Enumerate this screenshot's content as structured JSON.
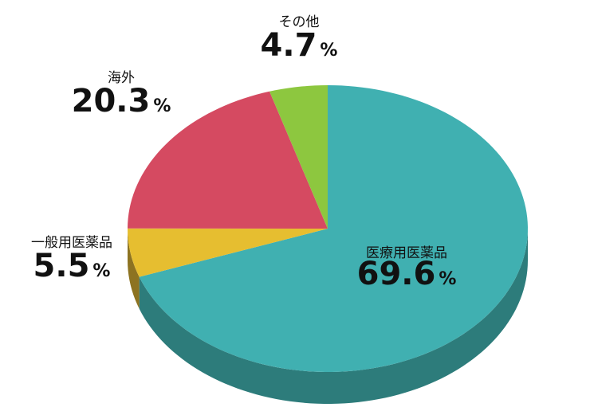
{
  "chart_data": {
    "type": "pie3d",
    "categories": [
      "医療用医薬品",
      "一般用医薬品",
      "海外",
      "その他"
    ],
    "values": [
      69.6,
      5.5,
      20.3,
      4.7
    ],
    "unit": "%",
    "colors": [
      "#40b0b1",
      "#e6be30",
      "#d54a61",
      "#8dc73f"
    ],
    "side_colors": [
      "#2d7c7b",
      "#8d7321",
      "#8a2f3e",
      "#5a8128"
    ]
  }
}
